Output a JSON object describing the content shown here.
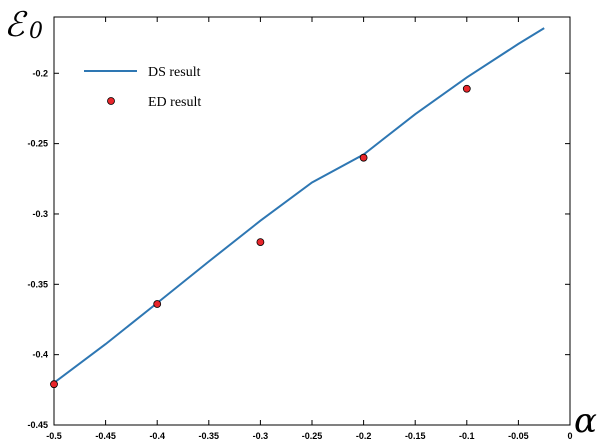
{
  "chart_data": {
    "type": "line",
    "title": "",
    "xlabel": "α",
    "ylabel": "ℰ",
    "ylabel_subscript": "0",
    "xlim": [
      -0.5,
      0
    ],
    "ylim": [
      -0.45,
      -0.16
    ],
    "x_ticks": [
      -0.5,
      -0.45,
      -0.4,
      -0.35,
      -0.3,
      -0.25,
      -0.2,
      -0.15,
      -0.1,
      -0.05,
      0
    ],
    "x_tick_labels": [
      "-0.5",
      "-0.45",
      "-0.4",
      "-0.35",
      "-0.3",
      "-0.25",
      "-0.2",
      "-0.15",
      "-0.1",
      "-0.05",
      "0"
    ],
    "y_ticks": [
      -0.45,
      -0.4,
      -0.35,
      -0.3,
      -0.25,
      -0.2
    ],
    "y_tick_labels": [
      "-0.45",
      "-0.4",
      "-0.35",
      "-0.3",
      "-0.25",
      "-0.2"
    ],
    "grid": false,
    "legend_position": "top-left",
    "series": [
      {
        "name": "DS result",
        "kind": "line",
        "color": "#2e77b3",
        "x": [
          -0.5,
          -0.45,
          -0.4,
          -0.35,
          -0.3,
          -0.25,
          -0.2,
          -0.15,
          -0.1,
          -0.05,
          -0.025
        ],
        "y": [
          -0.42,
          -0.3925,
          -0.3633,
          -0.3338,
          -0.3048,
          -0.2776,
          -0.2577,
          -0.2291,
          -0.2029,
          -0.1791,
          -0.1679
        ]
      },
      {
        "name": "ED result",
        "kind": "scatter",
        "color": "#e8262b",
        "x": [
          -0.5,
          -0.4,
          -0.3,
          -0.2,
          -0.1
        ],
        "y": [
          -0.421,
          -0.364,
          -0.32,
          -0.26,
          -0.211
        ]
      }
    ]
  }
}
